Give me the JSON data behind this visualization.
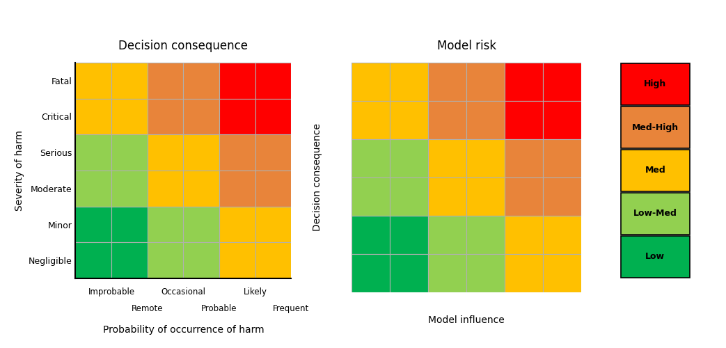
{
  "left_title": "Decision consequence",
  "right_title": "Model risk",
  "left_ylabel": "Severity of harm",
  "left_xlabel": "Probability of occurrence of harm",
  "right_ylabel": "Decision consequence",
  "right_xlabel": "Model influence",
  "left_yticks": [
    "Negligible",
    "Minor",
    "Moderate",
    "Serious",
    "Critical",
    "Fatal"
  ],
  "left_xticks_row1": [
    "Improbable",
    "Occasional",
    "Likely"
  ],
  "left_xticks_row1_pos": [
    1.0,
    3.0,
    5.0
  ],
  "left_xticks_row2": [
    "Remote",
    "Probable",
    "Frequent"
  ],
  "left_xticks_row2_pos": [
    2.0,
    4.0,
    6.0
  ],
  "left_grid": [
    [
      "#FFC000",
      "#FFC000",
      "#E8843A",
      "#E8843A",
      "#FF0000",
      "#FF0000"
    ],
    [
      "#FFC000",
      "#FFC000",
      "#E8843A",
      "#E8843A",
      "#FF0000",
      "#FF0000"
    ],
    [
      "#92D050",
      "#92D050",
      "#FFC000",
      "#FFC000",
      "#E8843A",
      "#E8843A"
    ],
    [
      "#92D050",
      "#92D050",
      "#FFC000",
      "#FFC000",
      "#E8843A",
      "#E8843A"
    ],
    [
      "#00B050",
      "#00B050",
      "#92D050",
      "#92D050",
      "#FFC000",
      "#FFC000"
    ],
    [
      "#00B050",
      "#00B050",
      "#92D050",
      "#92D050",
      "#FFC000",
      "#FFC000"
    ]
  ],
  "right_grid": [
    [
      "#FFC000",
      "#FFC000",
      "#E8843A",
      "#E8843A",
      "#FF0000",
      "#FF0000"
    ],
    [
      "#FFC000",
      "#FFC000",
      "#E8843A",
      "#E8843A",
      "#FF0000",
      "#FF0000"
    ],
    [
      "#92D050",
      "#92D050",
      "#FFC000",
      "#FFC000",
      "#E8843A",
      "#E8843A"
    ],
    [
      "#92D050",
      "#92D050",
      "#FFC000",
      "#FFC000",
      "#E8843A",
      "#E8843A"
    ],
    [
      "#00B050",
      "#00B050",
      "#92D050",
      "#92D050",
      "#FFC000",
      "#FFC000"
    ],
    [
      "#00B050",
      "#00B050",
      "#92D050",
      "#92D050",
      "#FFC000",
      "#FFC000"
    ]
  ],
  "legend_labels": [
    "High",
    "Med-High",
    "Med",
    "Low-Med",
    "Low"
  ],
  "legend_colors": [
    "#FF0000",
    "#E8843A",
    "#FFC000",
    "#92D050",
    "#00B050"
  ],
  "bg_color": "#FFFFFF",
  "grid_line_color": "#B0B0B0"
}
